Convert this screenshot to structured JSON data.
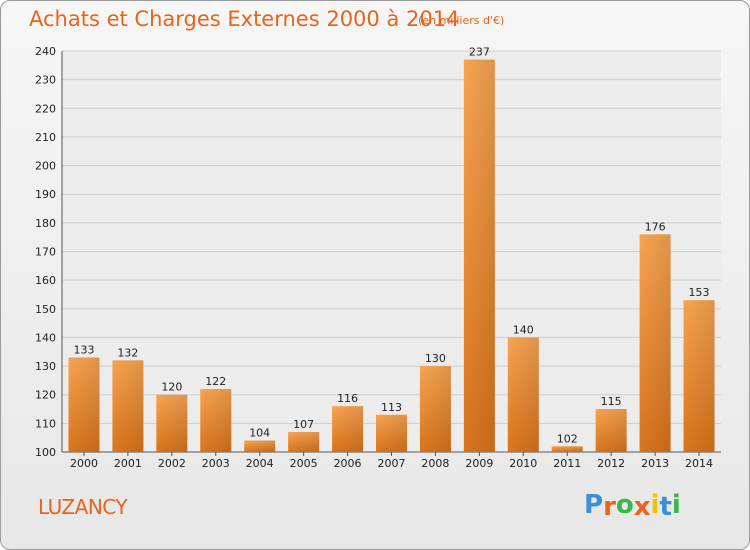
{
  "header": {
    "title": "Achats et Charges Externes 2000 à 2014",
    "subtitle": "(en milliers d'€)"
  },
  "footer": {
    "commune": "LUZANCY",
    "logo_letters": [
      "P",
      "r",
      "o",
      "x",
      "i",
      "t",
      "i"
    ],
    "logo_colors": [
      "#3a8fd6",
      "#e8641b",
      "#3ab54a",
      "#e8641b",
      "#f2c200",
      "#3a8fd6",
      "#3ab54a"
    ]
  },
  "chart_data": {
    "type": "bar",
    "categories": [
      "2000",
      "2001",
      "2002",
      "2003",
      "2004",
      "2005",
      "2006",
      "2007",
      "2008",
      "2009",
      "2010",
      "2011",
      "2012",
      "2013",
      "2014"
    ],
    "values": [
      133,
      132,
      120,
      122,
      104,
      107,
      116,
      113,
      130,
      237,
      140,
      102,
      115,
      176,
      153
    ],
    "ylim": [
      100,
      240
    ],
    "yticks": [
      100,
      110,
      120,
      130,
      140,
      150,
      160,
      170,
      180,
      190,
      200,
      210,
      220,
      230,
      240
    ],
    "grid": true,
    "bar_color": "#f0922f"
  }
}
